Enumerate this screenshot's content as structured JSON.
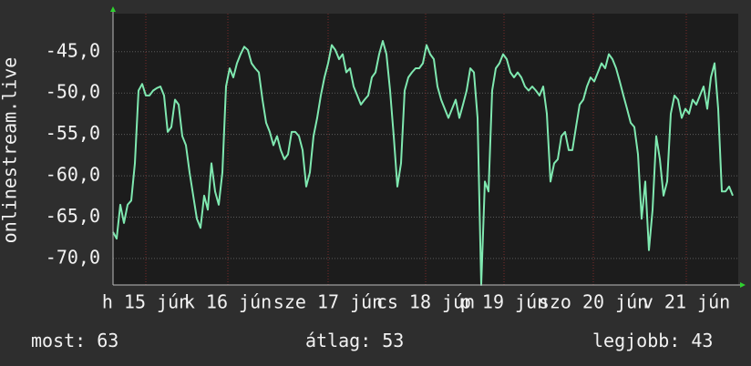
{
  "chart_data": {
    "type": "line",
    "y_label": "onlinestream.live",
    "color": "#7fe8b0",
    "grid": true,
    "xlim": [
      0,
      170
    ],
    "ylim": [
      -73.2,
      -40.4
    ],
    "yticks": [
      {
        "value": -45,
        "label": "-45,0"
      },
      {
        "value": -50,
        "label": "-50,0"
      },
      {
        "value": -55,
        "label": "-55,0"
      },
      {
        "value": -60,
        "label": "-60,0"
      },
      {
        "value": -65,
        "label": "-65,0"
      },
      {
        "value": -70,
        "label": "-70,0"
      }
    ],
    "xticks": [
      {
        "value": 9,
        "label": "h 15 jún"
      },
      {
        "value": 31.5,
        "label": "k 16 jún"
      },
      {
        "value": 59,
        "label": "sze 17 jún"
      },
      {
        "value": 85.75,
        "label": "cs 18 jún"
      },
      {
        "value": 107.25,
        "label": "p 19 jún"
      },
      {
        "value": 131.75,
        "label": "szo 20 jún"
      },
      {
        "value": 157.25,
        "label": "v 21 jún"
      }
    ],
    "values": [
      -66.8,
      -67.6,
      -63.5,
      -65.7,
      -63.5,
      -63.0,
      -58.5,
      -49.7,
      -48.9,
      -50.3,
      -50.3,
      -49.7,
      -49.4,
      -49.2,
      -50.3,
      -54.7,
      -54.1,
      -50.8,
      -51.4,
      -55.2,
      -56.3,
      -59.6,
      -62.4,
      -65.2,
      -66.3,
      -62.4,
      -64.1,
      -58.5,
      -61.9,
      -63.5,
      -59.6,
      -49.2,
      -47.0,
      -48.1,
      -46.4,
      -45.3,
      -44.4,
      -44.8,
      -46.4,
      -47.0,
      -47.5,
      -50.8,
      -53.6,
      -54.7,
      -56.3,
      -55.2,
      -56.9,
      -58.0,
      -57.4,
      -54.7,
      -54.7,
      -55.2,
      -56.9,
      -61.3,
      -59.6,
      -55.2,
      -53.0,
      -50.3,
      -48.1,
      -46.4,
      -44.2,
      -44.8,
      -45.9,
      -45.3,
      -47.5,
      -47.0,
      -49.2,
      -50.3,
      -51.4,
      -50.8,
      -50.3,
      -48.1,
      -47.5,
      -45.3,
      -43.7,
      -45.3,
      -49.7,
      -55.2,
      -61.3,
      -58.5,
      -49.7,
      -48.1,
      -47.5,
      -47.0,
      -47.0,
      -46.4,
      -44.2,
      -45.3,
      -45.9,
      -49.2,
      -50.8,
      -51.9,
      -53.0,
      -51.9,
      -50.8,
      -53.0,
      -51.4,
      -49.7,
      -47.0,
      -47.5,
      -53.0,
      -73.2,
      -60.7,
      -61.9,
      -49.7,
      -47.0,
      -46.4,
      -45.3,
      -45.9,
      -47.5,
      -48.1,
      -47.5,
      -48.1,
      -49.2,
      -49.7,
      -49.2,
      -49.7,
      -50.3,
      -49.2,
      -52.5,
      -60.7,
      -58.5,
      -58.0,
      -55.2,
      -54.7,
      -56.9,
      -56.9,
      -54.1,
      -51.4,
      -50.8,
      -49.2,
      -48.1,
      -48.6,
      -47.5,
      -46.4,
      -47.0,
      -45.3,
      -45.9,
      -47.0,
      -48.6,
      -50.3,
      -51.9,
      -53.6,
      -54.1,
      -57.4,
      -65.2,
      -60.7,
      -69.0,
      -64.1,
      -55.2,
      -58.0,
      -62.4,
      -60.7,
      -52.5,
      -50.3,
      -50.8,
      -53.0,
      -51.9,
      -52.5,
      -50.8,
      -51.4,
      -50.3,
      -49.2,
      -51.9,
      -48.1,
      -46.4,
      -51.9,
      -61.9,
      -61.9,
      -61.3,
      -62.4
    ],
    "stats": [
      {
        "label": "most:",
        "value": 63
      },
      {
        "label": "átlag:",
        "value": 53
      },
      {
        "label": "legjobb:",
        "value": 43
      }
    ]
  }
}
